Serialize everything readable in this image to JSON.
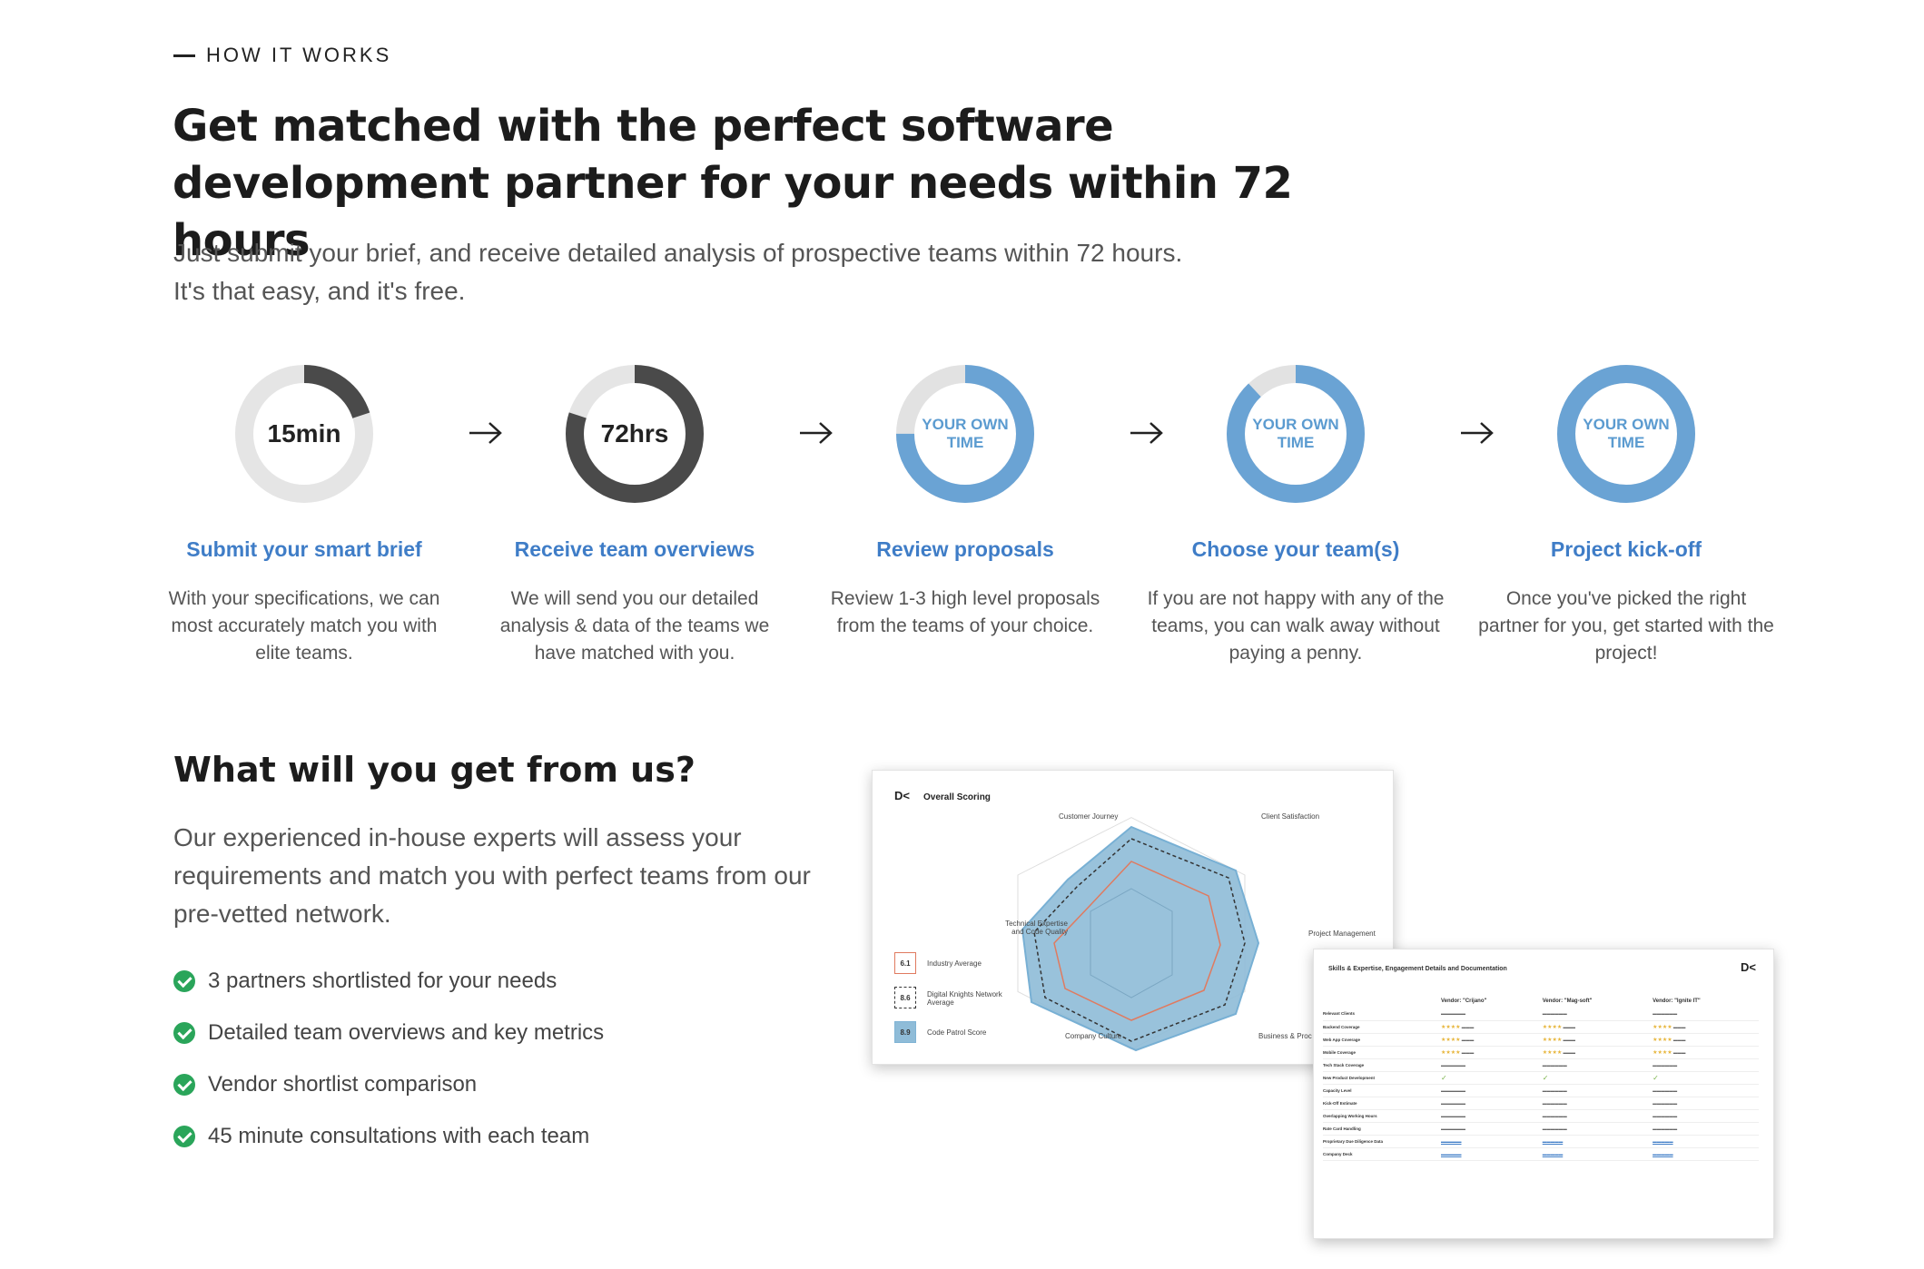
{
  "eyebrow": "HOW IT WORKS",
  "headline": "Get matched with the perfect software development partner for your needs within 72 hours",
  "subhead": "Just submit your brief, and receive detailed analysis of prospective teams within 72 hours. It's that easy, and it's free.",
  "steps": [
    {
      "ring_label": "15min",
      "title": "Submit your smart brief",
      "desc": "With your specifications, we can most accurately match you with elite teams.",
      "progress": 0.2
    },
    {
      "ring_label": "72hrs",
      "title": "Receive team overviews",
      "desc": "We will send you our detailed analysis & data of the teams we have matched with you.",
      "progress": 0.8
    },
    {
      "ring_label": "YOUR OWN TIME",
      "title": "Review proposals",
      "desc": "Review 1-3 high level proposals from the teams of your choice.",
      "progress": 0.75
    },
    {
      "ring_label": "YOUR OWN TIME",
      "title": "Choose your team(s)",
      "desc": "If you are not happy with any of the teams, you can walk away without paying a penny.",
      "progress": 0.88
    },
    {
      "ring_label": "YOUR OWN TIME",
      "title": "Project kick-off",
      "desc": "Once you've picked the right partner for you, get started with the project!",
      "progress": 1.0
    }
  ],
  "section": {
    "title": "What will you get from us?",
    "desc": "Our experienced in-house experts will assess your requirements and match you with perfect teams from our pre-vetted network.",
    "checklist": [
      "3 partners shortlisted for your needs",
      "Detailed team overviews and key metrics",
      "Vendor shortlist comparison",
      "45 minute consultations with each team"
    ]
  },
  "card1": {
    "logo": "D<",
    "title": "Overall Scoring",
    "axes": [
      "Customer Journey",
      "Client Satisfaction",
      "Project Management",
      "Business & Proc",
      "Company Culture",
      "Technical Expertise and Code Quality"
    ],
    "legend": [
      {
        "value": "6.1",
        "label": "Industry Average",
        "color": "#e07a5f"
      },
      {
        "value": "8.6",
        "label": "Digital Knights Network Average",
        "color": "#333333"
      },
      {
        "value": "8.9",
        "label": "Code Patrol Score",
        "color": "#7fb3d5"
      }
    ]
  },
  "card2": {
    "logo": "D<",
    "title": "Skills & Expertise, Engagement Details and Documentation",
    "columns": [
      "Vendor: \"Crijano\"",
      "Vendor: \"Mag-soft\"",
      "Vendor: \"Ignite IT\""
    ],
    "rows": [
      "Relevant Clients",
      "Backend Coverage",
      "Web App Coverage",
      "Mobile Coverage",
      "Tech Stack Coverage",
      "New Product Development",
      "Capacity Level",
      "Kick-Off Estimate",
      "Overlapping Working Hours",
      "Rate Card Handling",
      "Proprietary Due Diligence Data",
      "Company Deck"
    ]
  }
}
